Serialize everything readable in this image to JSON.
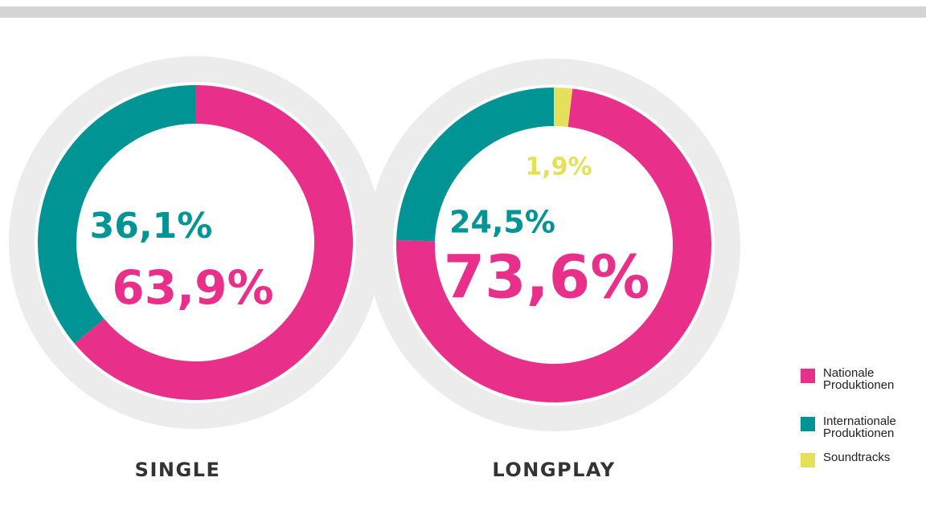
{
  "chart_data": [
    {
      "type": "pie",
      "title": "SINGLE",
      "categories": [
        "Nationale Produktionen",
        "Internationale Produktionen"
      ],
      "values": [
        63.9,
        36.1
      ],
      "value_labels": [
        "63,9%",
        "36,1%"
      ],
      "colors": [
        "#e8308a",
        "#009494"
      ]
    },
    {
      "type": "pie",
      "title": "LONGPLAY",
      "categories": [
        "Soundtracks",
        "Nationale Produktionen",
        "Internationale Produktionen"
      ],
      "values": [
        1.9,
        73.6,
        24.5
      ],
      "value_labels": [
        "1,9%",
        "73,6%",
        "24,5%"
      ],
      "colors": [
        "#e5e05a",
        "#e8308a",
        "#009494"
      ]
    }
  ],
  "legend": [
    {
      "name": "Nationale Produktionen",
      "color": "#e8308a"
    },
    {
      "name": "Internationale Produktionen",
      "color": "#009494"
    },
    {
      "name": "Soundtracks",
      "color": "#e5e05a"
    }
  ]
}
